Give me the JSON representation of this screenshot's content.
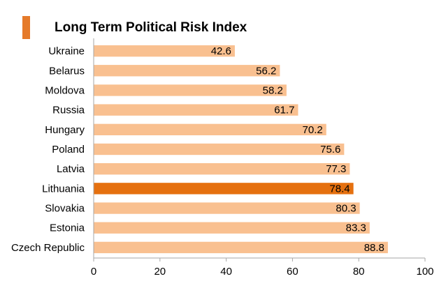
{
  "colors": {
    "bar": "#f9c090",
    "highlight": "#e5700f",
    "accent": "#e57a2a",
    "axis": "#a6a6a6",
    "text": "#000000"
  },
  "chart_data": {
    "type": "bar",
    "orientation": "horizontal",
    "title": "Long Term Political Risk Index",
    "xlabel": "",
    "ylabel": "",
    "categories": [
      "Ukraine",
      "Belarus",
      "Moldova",
      "Russia",
      "Hungary",
      "Poland",
      "Latvia",
      "Lithuania",
      "Slovakia",
      "Estonia",
      "Czech Republic"
    ],
    "values": [
      42.6,
      56.2,
      58.2,
      61.7,
      70.2,
      75.6,
      77.3,
      78.4,
      80.3,
      83.3,
      88.8
    ],
    "highlighted_category": "Lithuania",
    "xlim": [
      0,
      100
    ],
    "xticks": [
      0,
      20,
      40,
      60,
      80,
      100
    ],
    "grid": false,
    "data_labels": true
  }
}
